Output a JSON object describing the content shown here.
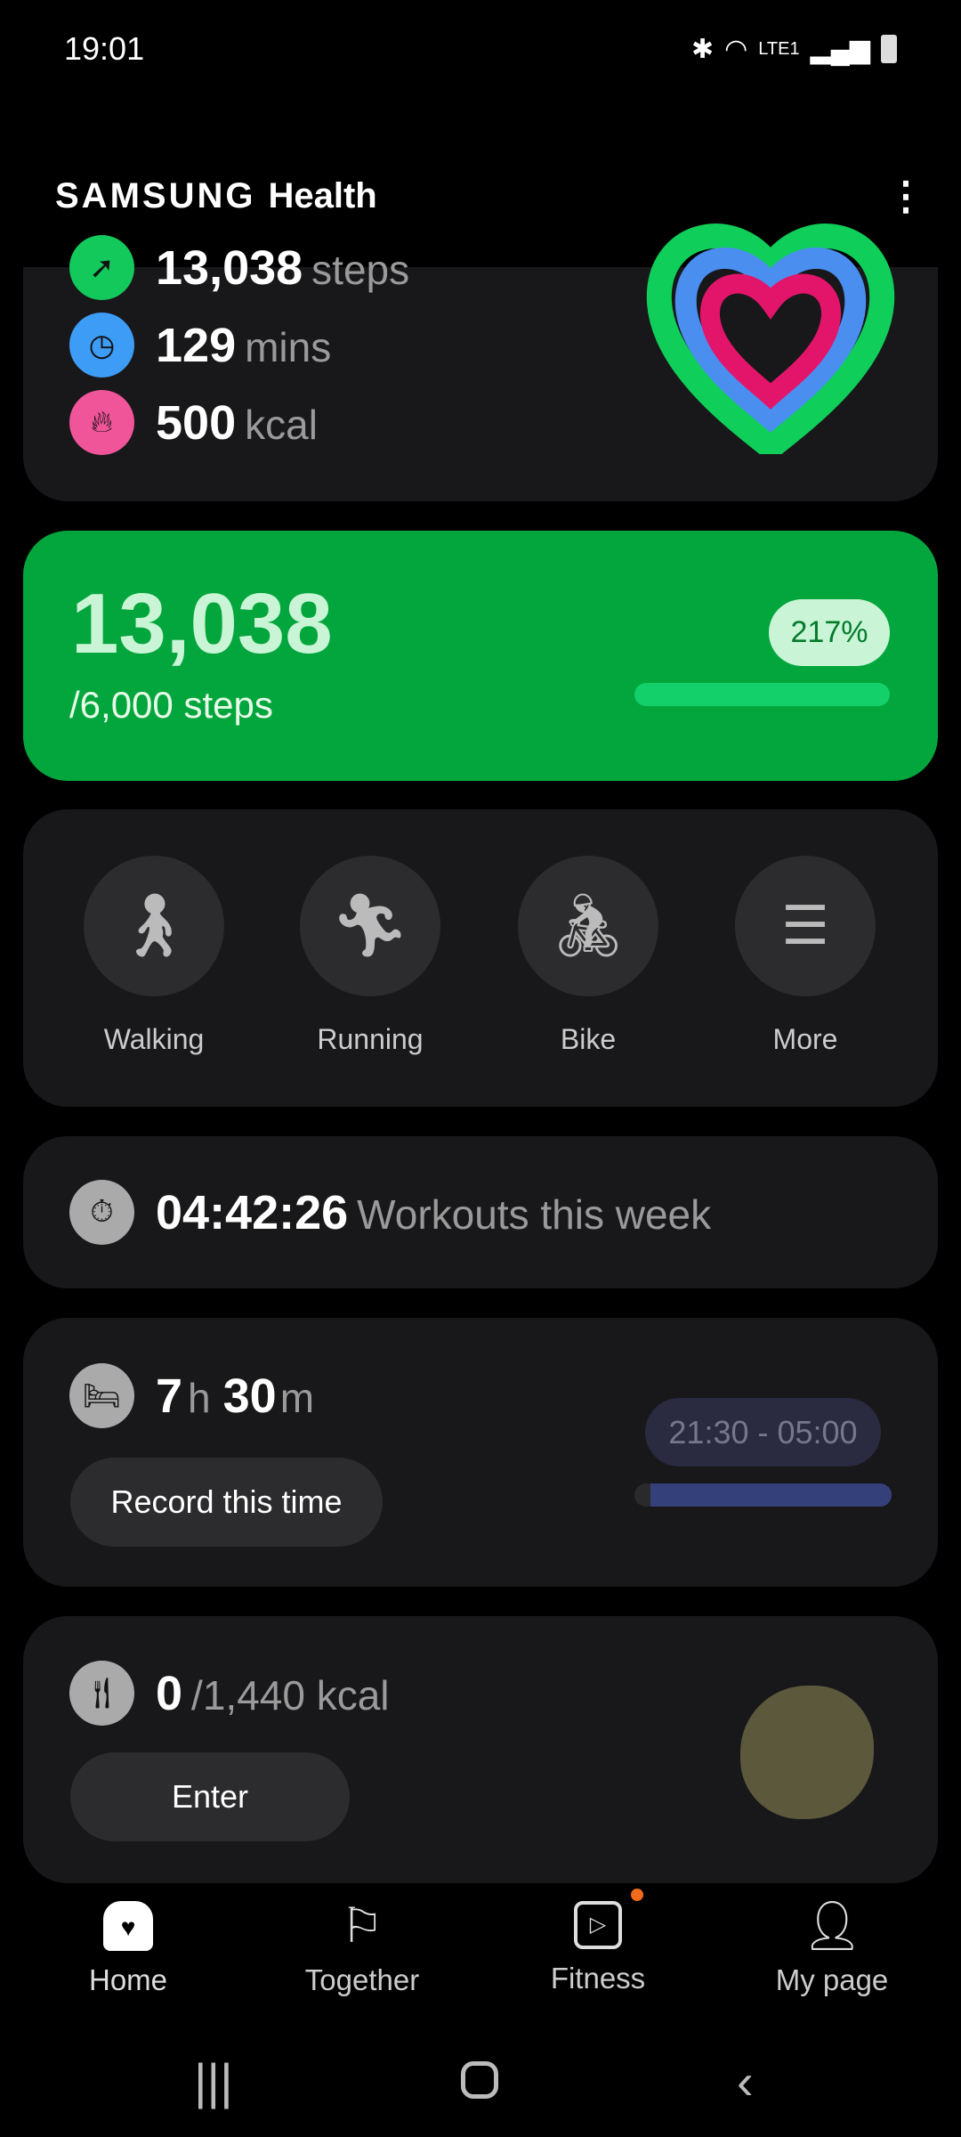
{
  "status_bar": {
    "time": "19:01",
    "network": "LTE1"
  },
  "header": {
    "brand": "SAMSUNG",
    "app": "Health",
    "menu_icon": "more-vertical-icon"
  },
  "activity": {
    "steps_value": "13,038",
    "steps_unit": "steps",
    "mins_value": "129",
    "mins_unit": "mins",
    "kcal_value": "500",
    "kcal_unit": "kcal"
  },
  "steps": {
    "value": "13,038",
    "goal": "/6,000 steps",
    "percent_label": "217%",
    "progress_percent": 100,
    "color": "#03a63c"
  },
  "exercises": [
    {
      "label": "Walking",
      "icon": "walking-icon"
    },
    {
      "label": "Running",
      "icon": "running-icon"
    },
    {
      "label": "Bike",
      "icon": "bike-icon"
    },
    {
      "label": "More",
      "icon": "list-icon"
    }
  ],
  "workouts": {
    "time": "04:42:26",
    "label": "Workouts this week"
  },
  "sleep": {
    "hours": "7",
    "h": "h",
    "minutes": "30",
    "m": "m",
    "button": "Record this time",
    "range": "21:30 - 05:00"
  },
  "food": {
    "value": "0",
    "goal": "/1,440 kcal",
    "button": "Enter"
  },
  "bottom_nav": [
    {
      "label": "Home",
      "active": true
    },
    {
      "label": "Together"
    },
    {
      "label": "Fitness",
      "badge": true
    },
    {
      "label": "My page"
    }
  ]
}
